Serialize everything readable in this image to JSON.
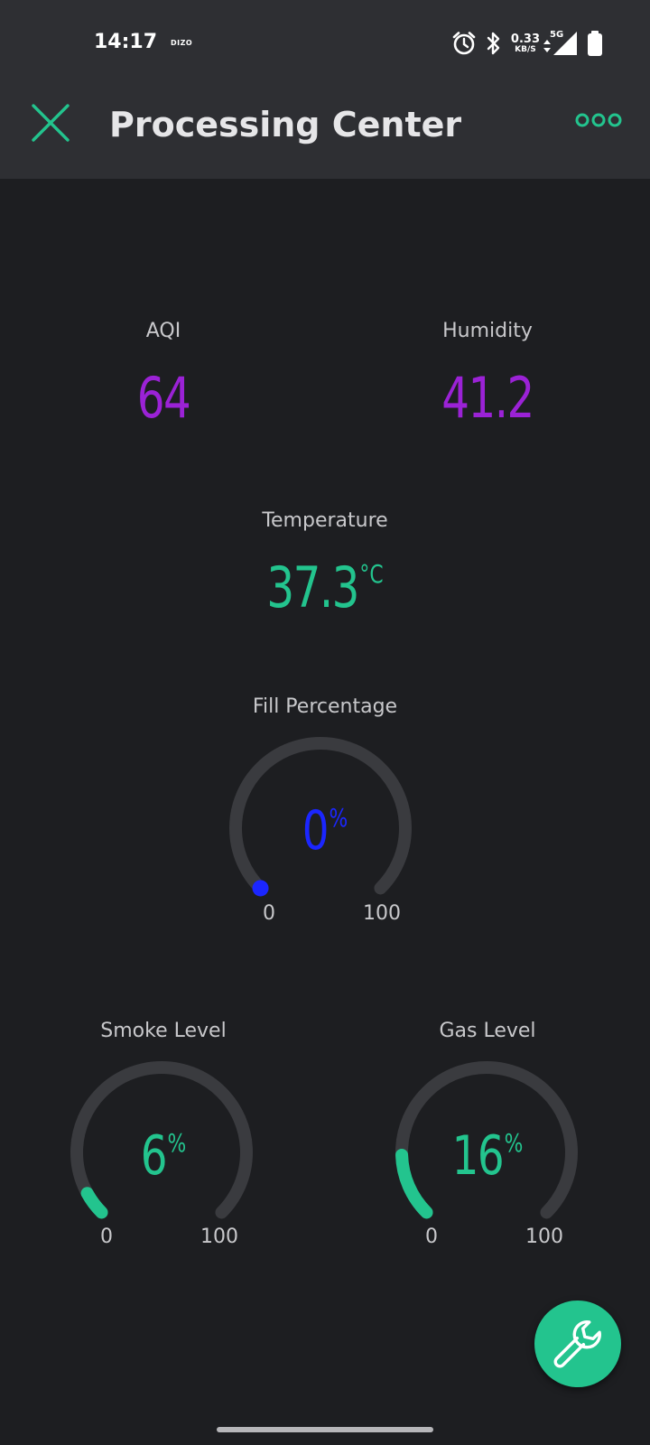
{
  "status_bar": {
    "time": "14:17",
    "brand": "DIZO",
    "net_speed_value": "0.33",
    "net_speed_unit": "KB/S",
    "network_type": "5G",
    "icons": [
      "alarm-icon",
      "bluetooth-icon",
      "data-arrows-icon",
      "signal-icon",
      "battery-icon"
    ]
  },
  "header": {
    "title": "Processing Center",
    "close_icon": "close-icon",
    "more_icon": "more-icon"
  },
  "widgets": {
    "aqi": {
      "label": "AQI",
      "value": "64",
      "color": "#9b22d6"
    },
    "humidity": {
      "label": "Humidity",
      "value": "41.2",
      "color": "#9b22d6"
    },
    "temperature": {
      "label": "Temperature",
      "value": "37.3",
      "unit": "°C",
      "color": "#23c48e"
    },
    "fill": {
      "label": "Fill Percentage",
      "value": "0",
      "unit": "%",
      "min": "0",
      "max": "100",
      "percent": 0,
      "color": "#1b26ff"
    },
    "smoke": {
      "label": "Smoke Level",
      "value": "6",
      "unit": "%",
      "min": "0",
      "max": "100",
      "percent": 6,
      "color": "#23c48e"
    },
    "gas": {
      "label": "Gas Level",
      "value": "16",
      "unit": "%",
      "min": "0",
      "max": "100",
      "percent": 16,
      "color": "#23c48e"
    }
  },
  "fab": {
    "icon": "wrench-icon",
    "color": "#23c48e"
  },
  "colors": {
    "background": "#1d1e21",
    "bar": "#2e2f33",
    "accent": "#23c48e",
    "gauge_track": "#3a3b3f"
  }
}
